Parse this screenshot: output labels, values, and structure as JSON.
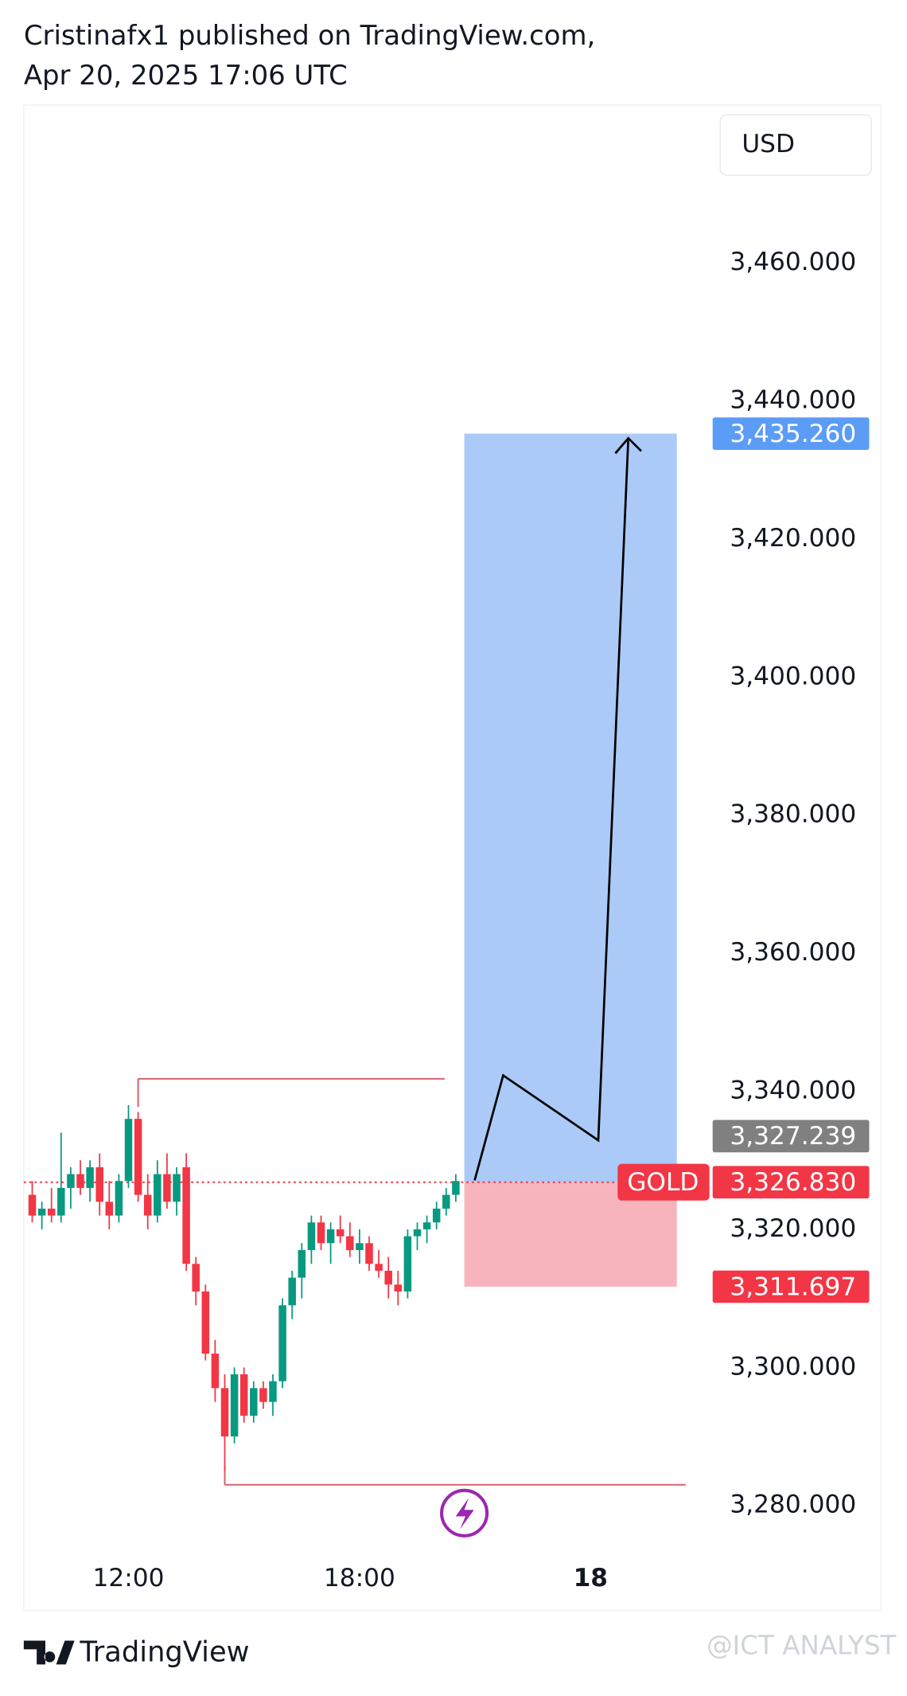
{
  "header": {
    "line1": "Cristinafx1 published on TradingView.com,",
    "line2": "Apr 20, 2025 17:06 UTC"
  },
  "footer": {
    "brand": "TradingView",
    "watermark": "@ICT ANALYST"
  },
  "chart_data": {
    "type": "candlestick",
    "currency": "USD",
    "symbol": "GOLD",
    "up_color": "#089981",
    "down_color": "#f23645",
    "x": [
      9.5,
      9.75,
      10,
      10.25,
      10.5,
      10.75,
      11,
      11.25,
      11.5,
      11.75,
      12,
      12.25,
      12.5,
      12.75,
      13,
      13.25,
      13.5,
      13.75,
      14,
      14.25,
      14.5,
      14.75,
      15,
      15.25,
      15.5,
      15.75,
      16,
      16.25,
      16.5,
      16.75,
      17,
      17.25,
      17.5,
      17.75,
      18,
      18.25,
      18.5,
      18.75,
      19,
      19.25,
      19.5,
      19.75,
      20,
      20.25,
      20.5
    ],
    "open": [
      3325,
      3322,
      3323,
      3322,
      3326,
      3328,
      3326,
      3329,
      3324,
      3322,
      3327,
      3336,
      3325,
      3322,
      3328,
      3324,
      3329,
      3315,
      3311,
      3302,
      3297,
      3290,
      3299,
      3293,
      3297,
      3295,
      3298,
      3309,
      3313,
      3317,
      3321,
      3318,
      3320,
      3319,
      3317,
      3318,
      3315,
      3314,
      3312,
      3311,
      3319,
      3320,
      3321,
      3323,
      3325
    ],
    "high": [
      3327,
      3324,
      3326,
      3334,
      3329,
      3330,
      3330,
      3331,
      3327,
      3328,
      3338,
      3337,
      3328,
      3330,
      3331,
      3329,
      3331,
      3316,
      3312,
      3304,
      3299,
      3300,
      3300,
      3298,
      3298,
      3299,
      3310,
      3314,
      3318,
      3322,
      3322,
      3321,
      3322,
      3321,
      3320,
      3319,
      3317,
      3316,
      3314,
      3320,
      3321,
      3322,
      3324,
      3326,
      3328
    ],
    "low": [
      3321,
      3320,
      3321,
      3321,
      3323,
      3325,
      3324,
      3322,
      3320,
      3321,
      3326,
      3324,
      3320,
      3321,
      3323,
      3322,
      3314,
      3309,
      3301,
      3295,
      3285,
      3289,
      3292,
      3292,
      3294,
      3293,
      3297,
      3307,
      3310,
      3315,
      3317,
      3315,
      3318,
      3316,
      3315,
      3314,
      3313,
      3310,
      3309,
      3310,
      3317,
      3318,
      3320,
      3322,
      3324
    ],
    "close": [
      3322,
      3323,
      3322,
      3326,
      3328,
      3326,
      3329,
      3324,
      3322,
      3327,
      3336,
      3325,
      3322,
      3328,
      3324,
      3328,
      3315,
      3311,
      3302,
      3297,
      3290,
      3299,
      3293,
      3297,
      3295,
      3298,
      3309,
      3313,
      3317,
      3321,
      3318,
      3320,
      3319,
      3317,
      3318,
      3315,
      3314,
      3312,
      3311,
      3319,
      3320,
      3321,
      3323,
      3325,
      3327
    ],
    "xlim": [
      9.28,
      27.17
    ],
    "ylim": [
      3274.2,
      3482.85
    ],
    "xticks": [
      {
        "value": 12,
        "label": "12:00"
      },
      {
        "value": 18,
        "label": "18:00"
      },
      {
        "value": 24,
        "label": "18"
      }
    ],
    "yticks": [
      {
        "value": 3280,
        "label": "3,280.000"
      },
      {
        "value": 3300,
        "label": "3,300.000"
      },
      {
        "value": 3320,
        "label": "3,320.000"
      },
      {
        "value": 3340,
        "label": "3,340.000"
      },
      {
        "value": 3360,
        "label": "3,360.000"
      },
      {
        "value": 3380,
        "label": "3,380.000"
      },
      {
        "value": 3400,
        "label": "3,400.000"
      },
      {
        "value": 3420,
        "label": "3,420.000"
      },
      {
        "value": 3440,
        "label": "3,440.000"
      },
      {
        "value": 3460,
        "label": "3,460.000"
      }
    ],
    "price_labels": [
      {
        "value": 3435.26,
        "label": "3,435.260",
        "color": "#5b9cf6"
      },
      {
        "value": 3327.239,
        "label": "3,327.239",
        "color": "#808080"
      },
      {
        "value": 3326.83,
        "label": "3,326.830",
        "color": "#f23645"
      },
      {
        "value": 3311.697,
        "label": "3,311.697",
        "color": "#f23645"
      }
    ],
    "position": {
      "entry": 3326.83,
      "target": 3435.26,
      "stop": 3311.697,
      "x": [
        20.72,
        26.24
      ],
      "profit_color": "#abcaf7",
      "loss_color": "#f8b4bc"
    },
    "hlines": [
      {
        "y": 3341.8,
        "x": [
          12.25,
          20.21
        ]
      },
      {
        "y": 3283,
        "x": [
          14.5,
          26.47
        ]
      }
    ],
    "path": {
      "x": [
        20.99,
        21.73,
        24.2,
        24.98
      ],
      "y": [
        3327.1,
        3342.3,
        3332.9,
        3434.6
      ]
    }
  }
}
